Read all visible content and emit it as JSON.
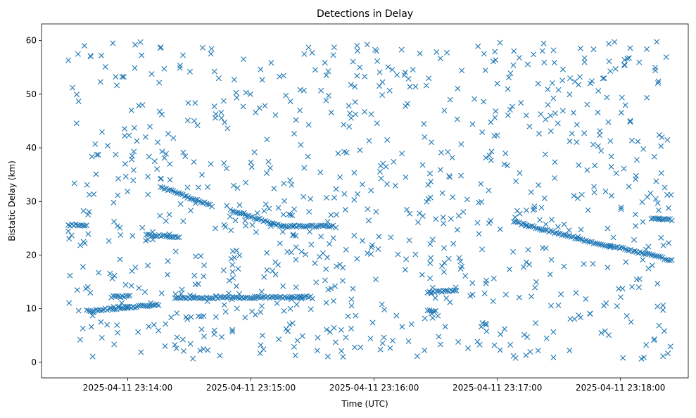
{
  "chart_data": {
    "type": "scatter",
    "title": "Detections in Delay",
    "xlabel": "Time (UTC)",
    "ylabel": "Bistatic Delay (km)",
    "marker": "x",
    "color": "#1f77b4",
    "grid": false,
    "x_type": "time",
    "xlim": [
      "2025-04-11 23:13:18",
      "2025-04-11 23:18:33"
    ],
    "ylim": [
      -2.9,
      63.1
    ],
    "x_ticks": [
      {
        "value": "2025-04-11 23:14:00",
        "label": "2025-04-11 23:14:00"
      },
      {
        "value": "2025-04-11 23:15:00",
        "label": "2025-04-11 23:15:00"
      },
      {
        "value": "2025-04-11 23:16:00",
        "label": "2025-04-11 23:16:00"
      },
      {
        "value": "2025-04-11 23:17:00",
        "label": "2025-04-11 23:17:00"
      },
      {
        "value": "2025-04-11 23:18:00",
        "label": "2025-04-11 23:18:00"
      }
    ],
    "y_ticks": [
      0,
      10,
      20,
      30,
      40,
      50,
      60
    ],
    "x_range": [
      "2025-04-11 23:13:31",
      "2025-04-11 23:18:25"
    ],
    "y_range": [
      0.5,
      59.8
    ],
    "tracks": [
      {
        "start": [
          "2025-04-11 23:13:31",
          25.6
        ],
        "end": [
          "2025-04-11 23:13:40",
          25.6
        ]
      },
      {
        "start": [
          "2025-04-11 23:13:40",
          9.6
        ],
        "end": [
          "2025-04-11 23:14:00",
          10.2
        ]
      },
      {
        "start": [
          "2025-04-11 23:14:00",
          10.2
        ],
        "end": [
          "2025-04-11 23:14:15",
          10.8
        ]
      },
      {
        "start": [
          "2025-04-11 23:13:52",
          12.2
        ],
        "end": [
          "2025-04-11 23:14:01",
          12.3
        ]
      },
      {
        "start": [
          "2025-04-11 23:14:09",
          23.8
        ],
        "end": [
          "2025-04-11 23:14:25",
          23.3
        ]
      },
      {
        "start": [
          "2025-04-11 23:14:16",
          32.7
        ],
        "end": [
          "2025-04-11 23:14:41",
          29.2
        ]
      },
      {
        "start": [
          "2025-04-11 23:14:23",
          12.0
        ],
        "end": [
          "2025-04-11 23:15:29",
          12.2
        ]
      },
      {
        "start": [
          "2025-04-11 23:14:50",
          28.3
        ],
        "end": [
          "2025-04-11 23:15:15",
          25.4
        ]
      },
      {
        "start": [
          "2025-04-11 23:15:15",
          25.4
        ],
        "end": [
          "2025-04-11 23:15:40",
          25.4
        ]
      },
      {
        "start": [
          "2025-04-11 23:16:26",
          13.0
        ],
        "end": [
          "2025-04-11 23:16:40",
          13.5
        ]
      },
      {
        "start": [
          "2025-04-11 23:16:26",
          9.6
        ],
        "end": [
          "2025-04-11 23:16:30",
          9.6
        ]
      },
      {
        "start": [
          "2025-04-11 23:17:08",
          26.2
        ],
        "end": [
          "2025-04-11 23:17:55",
          21.5
        ]
      },
      {
        "start": [
          "2025-04-11 23:17:55",
          21.8
        ],
        "end": [
          "2025-04-11 23:18:25",
          19.0
        ]
      },
      {
        "start": [
          "2025-04-11 23:18:15",
          26.8
        ],
        "end": [
          "2025-04-11 23:18:25",
          26.6
        ]
      }
    ],
    "scattered_detections": 900
  }
}
